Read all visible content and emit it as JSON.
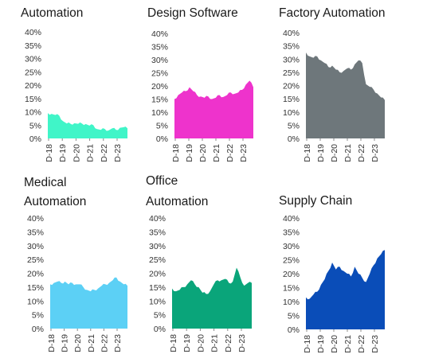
{
  "chart_data": [
    {
      "type": "area",
      "title_lines": [
        "Automation"
      ],
      "color": "#40f5c8",
      "x_labels": [
        "D-18",
        "D-19",
        "D-20",
        "D-21",
        "D-22",
        "D-23"
      ],
      "y_ticks": [
        "0%",
        "5%",
        "10%",
        "15%",
        "20%",
        "25%",
        "30%",
        "35%",
        "40%"
      ],
      "ylim": [
        0,
        40
      ],
      "series": [
        {
          "x": [
            "D-18",
            "M-19",
            "J-19",
            "S-19",
            "D-19",
            "M-20",
            "J-20",
            "S-20",
            "D-20",
            "M-21",
            "J-21",
            "S-21",
            "D-21",
            "M-22",
            "J-22",
            "S-22",
            "D-22",
            "M-23",
            "J-23",
            "S-23",
            "D-23",
            "M-24"
          ],
          "values": [
            9.5,
            9.2,
            8.8,
            8.6,
            6.5,
            5.6,
            5.5,
            5.7,
            5.5,
            5.6,
            5.4,
            4.8,
            5.0,
            3.5,
            3.2,
            3.6,
            3.0,
            3.8,
            3.2,
            4.0,
            4.2,
            3.8
          ]
        }
      ]
    },
    {
      "type": "area",
      "title_lines": [
        "Design Software"
      ],
      "color": "#ee33cc",
      "x_labels": [
        "D-18",
        "D-19",
        "D-20",
        "D-21",
        "D-22",
        "D-23"
      ],
      "y_ticks": [
        "0%",
        "5%",
        "10%",
        "15%",
        "20%",
        "25%",
        "30%",
        "35%",
        "40%"
      ],
      "ylim": [
        0,
        40
      ],
      "series": [
        {
          "x": [
            "D-18",
            "M-19",
            "J-19",
            "S-19",
            "D-19",
            "M-20",
            "J-20",
            "S-20",
            "D-20",
            "M-21",
            "J-21",
            "S-21",
            "D-21",
            "M-22",
            "J-22",
            "S-22",
            "D-22",
            "M-23",
            "J-23",
            "S-23",
            "D-23",
            "M-24"
          ],
          "values": [
            15.0,
            16.5,
            17.5,
            18.0,
            19.5,
            18.0,
            16.5,
            16.0,
            15.5,
            16.0,
            15.0,
            15.5,
            16.5,
            15.8,
            16.5,
            17.5,
            17.0,
            17.5,
            18.5,
            20.5,
            22.0,
            19.5
          ]
        }
      ]
    },
    {
      "type": "area",
      "title_lines": [
        "Factory Automation"
      ],
      "color": "#6e777b",
      "x_labels": [
        "D-18",
        "D-19",
        "D-20",
        "D-21",
        "D-22",
        "D-23"
      ],
      "y_ticks": [
        "0%",
        "5%",
        "10%",
        "15%",
        "20%",
        "25%",
        "30%",
        "35%",
        "40%"
      ],
      "ylim": [
        0,
        40
      ],
      "series": [
        {
          "x": [
            "D-18",
            "M-19",
            "J-19",
            "S-19",
            "D-19",
            "M-20",
            "J-20",
            "S-20",
            "D-20",
            "M-21",
            "J-21",
            "S-21",
            "D-21",
            "M-22",
            "J-22",
            "S-22",
            "D-22",
            "M-23",
            "J-23",
            "S-23",
            "D-23",
            "M-24"
          ],
          "values": [
            32.5,
            31.0,
            30.5,
            31.0,
            29.5,
            28.5,
            27.0,
            27.5,
            26.0,
            25.0,
            25.5,
            26.5,
            26.0,
            28.0,
            29.5,
            28.5,
            20.5,
            19.5,
            18.5,
            17.0,
            15.5,
            14.5
          ]
        }
      ]
    },
    {
      "type": "area",
      "title_lines": [
        "Medical",
        "Automation"
      ],
      "color": "#5cd0f5",
      "x_labels": [
        "D-18",
        "D-19",
        "D-20",
        "D-21",
        "D-22",
        "D-23"
      ],
      "y_ticks": [
        "0%",
        "5%",
        "10%",
        "15%",
        "20%",
        "25%",
        "30%",
        "35%",
        "40%"
      ],
      "ylim": [
        0,
        40
      ],
      "series": [
        {
          "x": [
            "D-18",
            "M-19",
            "J-19",
            "S-19",
            "D-19",
            "M-20",
            "J-20",
            "S-20",
            "D-20",
            "M-21",
            "J-21",
            "S-21",
            "D-21",
            "M-22",
            "J-22",
            "S-22",
            "D-22",
            "M-23",
            "J-23",
            "S-23",
            "D-23",
            "M-24"
          ],
          "values": [
            16.0,
            16.5,
            17.0,
            16.5,
            17.0,
            16.0,
            16.5,
            16.0,
            16.0,
            15.0,
            14.0,
            13.5,
            14.0,
            14.5,
            15.5,
            16.0,
            16.5,
            17.5,
            18.5,
            17.0,
            16.0,
            15.5
          ]
        }
      ]
    },
    {
      "type": "area",
      "title_lines": [
        "Office",
        "Automation"
      ],
      "color": "#0aa57a",
      "x_labels": [
        "D-18",
        "D-19",
        "D-20",
        "D-21",
        "D-22",
        "D-23"
      ],
      "y_ticks": [
        "0%",
        "5%",
        "10%",
        "15%",
        "20%",
        "25%",
        "30%",
        "35%",
        "40%"
      ],
      "ylim": [
        0,
        40
      ],
      "series": [
        {
          "x": [
            "D-18",
            "M-19",
            "J-19",
            "S-19",
            "D-19",
            "M-20",
            "J-20",
            "S-20",
            "D-20",
            "M-21",
            "J-21",
            "S-21",
            "D-21",
            "M-22",
            "J-22",
            "S-22",
            "D-22",
            "M-23",
            "J-23",
            "S-23",
            "D-23",
            "M-24"
          ],
          "values": [
            14.5,
            13.5,
            14.0,
            15.0,
            16.0,
            17.5,
            16.0,
            15.0,
            13.0,
            12.5,
            13.5,
            16.0,
            17.5,
            17.5,
            18.0,
            16.5,
            17.0,
            22.0,
            18.5,
            15.5,
            16.5,
            16.5
          ]
        }
      ]
    },
    {
      "type": "area",
      "title_lines": [
        "Supply Chain"
      ],
      "color": "#0a4db8",
      "x_labels": [
        "D-18",
        "D-19",
        "D-20",
        "D-21",
        "D-22",
        "D-23"
      ],
      "y_ticks": [
        "0%",
        "5%",
        "10%",
        "15%",
        "20%",
        "25%",
        "30%",
        "35%",
        "40%"
      ],
      "ylim": [
        0,
        40
      ],
      "series": [
        {
          "x": [
            "D-18",
            "M-19",
            "J-19",
            "S-19",
            "D-19",
            "M-20",
            "J-20",
            "S-20",
            "D-20",
            "M-21",
            "J-21",
            "S-21",
            "D-21",
            "M-22",
            "J-22",
            "S-22",
            "D-22",
            "M-23",
            "J-23",
            "S-23",
            "D-23",
            "M-24"
          ],
          "values": [
            11.5,
            11.0,
            12.5,
            13.5,
            16.0,
            18.0,
            21.0,
            24.0,
            21.5,
            22.5,
            21.0,
            20.0,
            19.0,
            22.5,
            20.0,
            18.5,
            17.0,
            20.0,
            23.0,
            25.5,
            27.0,
            28.5
          ]
        }
      ]
    }
  ]
}
